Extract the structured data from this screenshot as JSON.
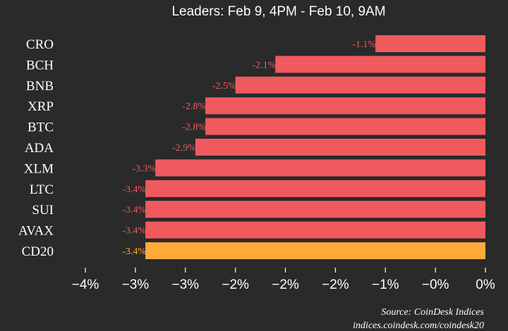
{
  "chart_data": {
    "type": "bar",
    "orientation": "horizontal",
    "title": "Leaders: Feb 9, 4PM - Feb 10, 9AM",
    "categories": [
      "CRO",
      "BCH",
      "BNB",
      "XRP",
      "BTC",
      "ADA",
      "XLM",
      "LTC",
      "SUI",
      "AVAX",
      "CD20"
    ],
    "values": [
      -1.1,
      -2.1,
      -2.5,
      -2.8,
      -2.8,
      -2.9,
      -3.3,
      -3.4,
      -3.4,
      -3.4,
      -3.4
    ],
    "value_labels": [
      "-1.1%",
      "-2.1%",
      "-2.5%",
      "-2.8%",
      "-2.8%",
      "-2.9%",
      "-3.3%",
      "-3.4%",
      "-3.4%",
      "-3.4%",
      "-3.4%"
    ],
    "highlight": "CD20",
    "xlim": [
      -4,
      0
    ],
    "xticks": [
      -4,
      -3.5,
      -3,
      -2.5,
      -2,
      -1.5,
      -1,
      -0.5,
      0
    ],
    "xtick_labels": [
      "−4%",
      "−3%",
      "−3%",
      "−2%",
      "−2%",
      "−2%",
      "−1%",
      "−0%",
      "0%"
    ],
    "source_line1": "Source: CoinDesk Indices",
    "source_line2": "indices.coindesk.com/coindesk20",
    "colors": {
      "background": "#2a2a2a",
      "bar": "#f05a5f",
      "highlight_bar": "#ffaa3b",
      "label_on_dark": "#f05a5f",
      "highlight_label": "#ffaa3b",
      "label_on_bar": "#7a1f22",
      "text": "#ffffff"
    }
  }
}
